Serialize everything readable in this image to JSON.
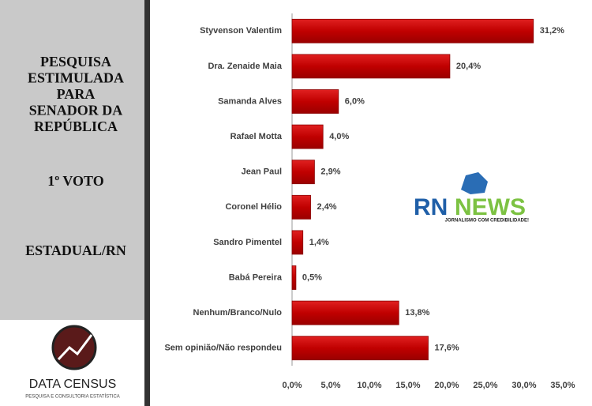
{
  "panel": {
    "title_lines": [
      "PESQUISA",
      "ESTIMULADA",
      "PARA",
      "SENADOR DA",
      "REPÚBLICA"
    ],
    "vote": "1º VOTO",
    "scope": "ESTADUAL/RN"
  },
  "logos": {
    "census_name": "DATA CENSUS",
    "census_tagline": "PESQUISA E CONSULTORIA ESTATÍSTICA",
    "rn": "RN",
    "news": "NEWS",
    "rn_tagline": "JORNALISMO COM CREDIBILIDADE!"
  },
  "chart_data": {
    "type": "hbar",
    "categories": [
      "Styvenson Valentim",
      "Dra. Zenaide Maia",
      "Samanda Alves",
      "Rafael Motta",
      "Jean Paul",
      "Coronel Hélio",
      "Sandro Pimentel",
      "Babá Pereira",
      "Nenhum/Branco/Nulo",
      "Sem opinião/Não respondeu"
    ],
    "values": [
      31.2,
      20.4,
      6.0,
      4.0,
      2.9,
      2.4,
      1.4,
      0.5,
      13.8,
      17.6
    ],
    "value_labels": [
      "31,2%",
      "20,4%",
      "6,0%",
      "4,0%",
      "2,9%",
      "2,4%",
      "1,4%",
      "0,5%",
      "13,8%",
      "17,6%"
    ],
    "color": "#c00000",
    "xlim": [
      0,
      35
    ],
    "xticks": [
      {
        "value": 0,
        "label": "0,0%"
      },
      {
        "value": 5,
        "label": "5,0%"
      },
      {
        "value": 10,
        "label": "10,0%"
      },
      {
        "value": 15,
        "label": "15,0%"
      },
      {
        "value": 20,
        "label": "20,0%"
      },
      {
        "value": 25,
        "label": "25,0%"
      },
      {
        "value": 30,
        "label": "30,0%"
      },
      {
        "value": 35,
        "label": "35,0%"
      }
    ]
  }
}
